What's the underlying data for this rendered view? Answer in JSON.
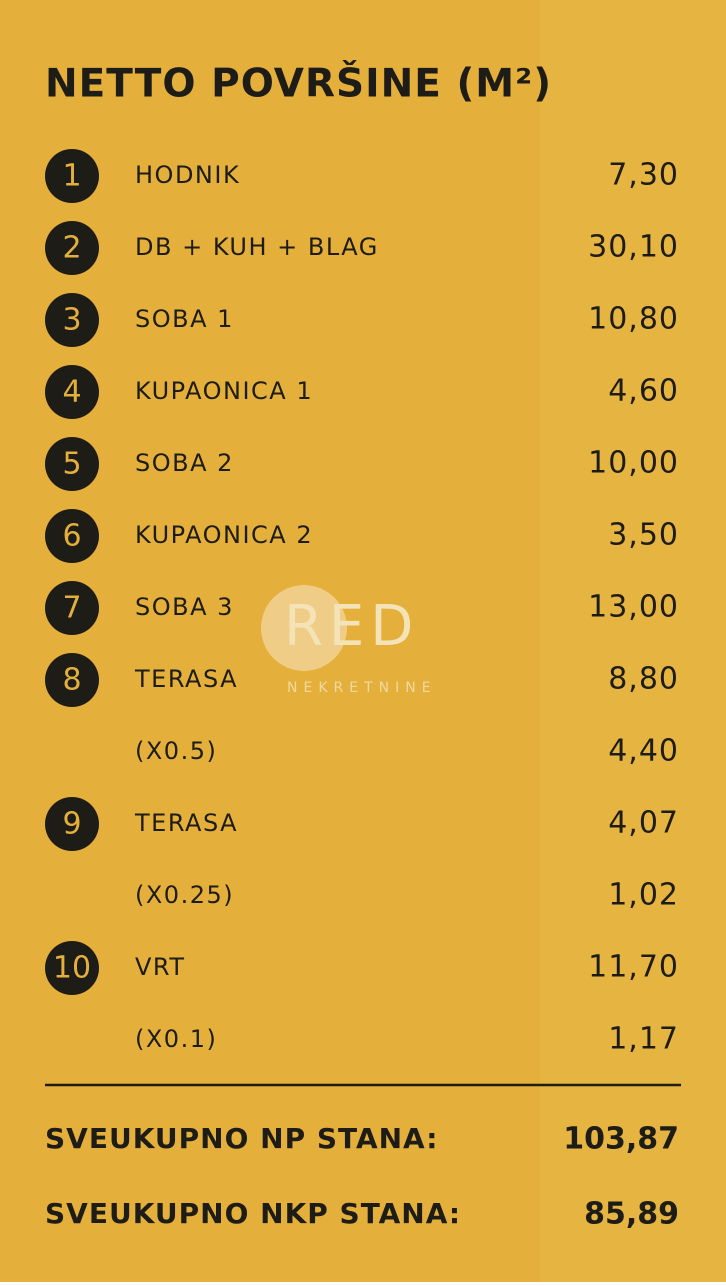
{
  "title": "NETTO POVRŠINE (M²)",
  "rows": [
    {
      "number": "1",
      "label": "HODNIK",
      "value": "7,30"
    },
    {
      "number": "2",
      "label": "DB + KUH + BLAG",
      "value": "30,10"
    },
    {
      "number": "3",
      "label": "SOBA 1",
      "value": "10,80"
    },
    {
      "number": "4",
      "label": "KUPAONICA 1",
      "value": "4,60"
    },
    {
      "number": "5",
      "label": "SOBA 2",
      "value": "10,00"
    },
    {
      "number": "6",
      "label": "KUPAONICA 2",
      "value": "3,50"
    },
    {
      "number": "7",
      "label": "SOBA 3",
      "value": "13,00"
    },
    {
      "number": "8",
      "label": "TERASA",
      "value": "8,80"
    },
    {
      "label": "(X0.5)",
      "value": "4,40"
    },
    {
      "number": "9",
      "label": "TERASA",
      "value": "4,07"
    },
    {
      "label": "(X0.25)",
      "value": "1,02"
    },
    {
      "number": "10",
      "label": "VRT",
      "value": "11,70"
    },
    {
      "label": "(X0.1)",
      "value": "1,17"
    }
  ],
  "totals": [
    {
      "label": "SVEUKUPNO NP STANA:",
      "value": "103,87"
    },
    {
      "label": "SVEUKUPNO NKP STANA:",
      "value": "85,89"
    }
  ],
  "watermark": {
    "logo": "RED",
    "subtitle": "NEKRETNINE"
  }
}
